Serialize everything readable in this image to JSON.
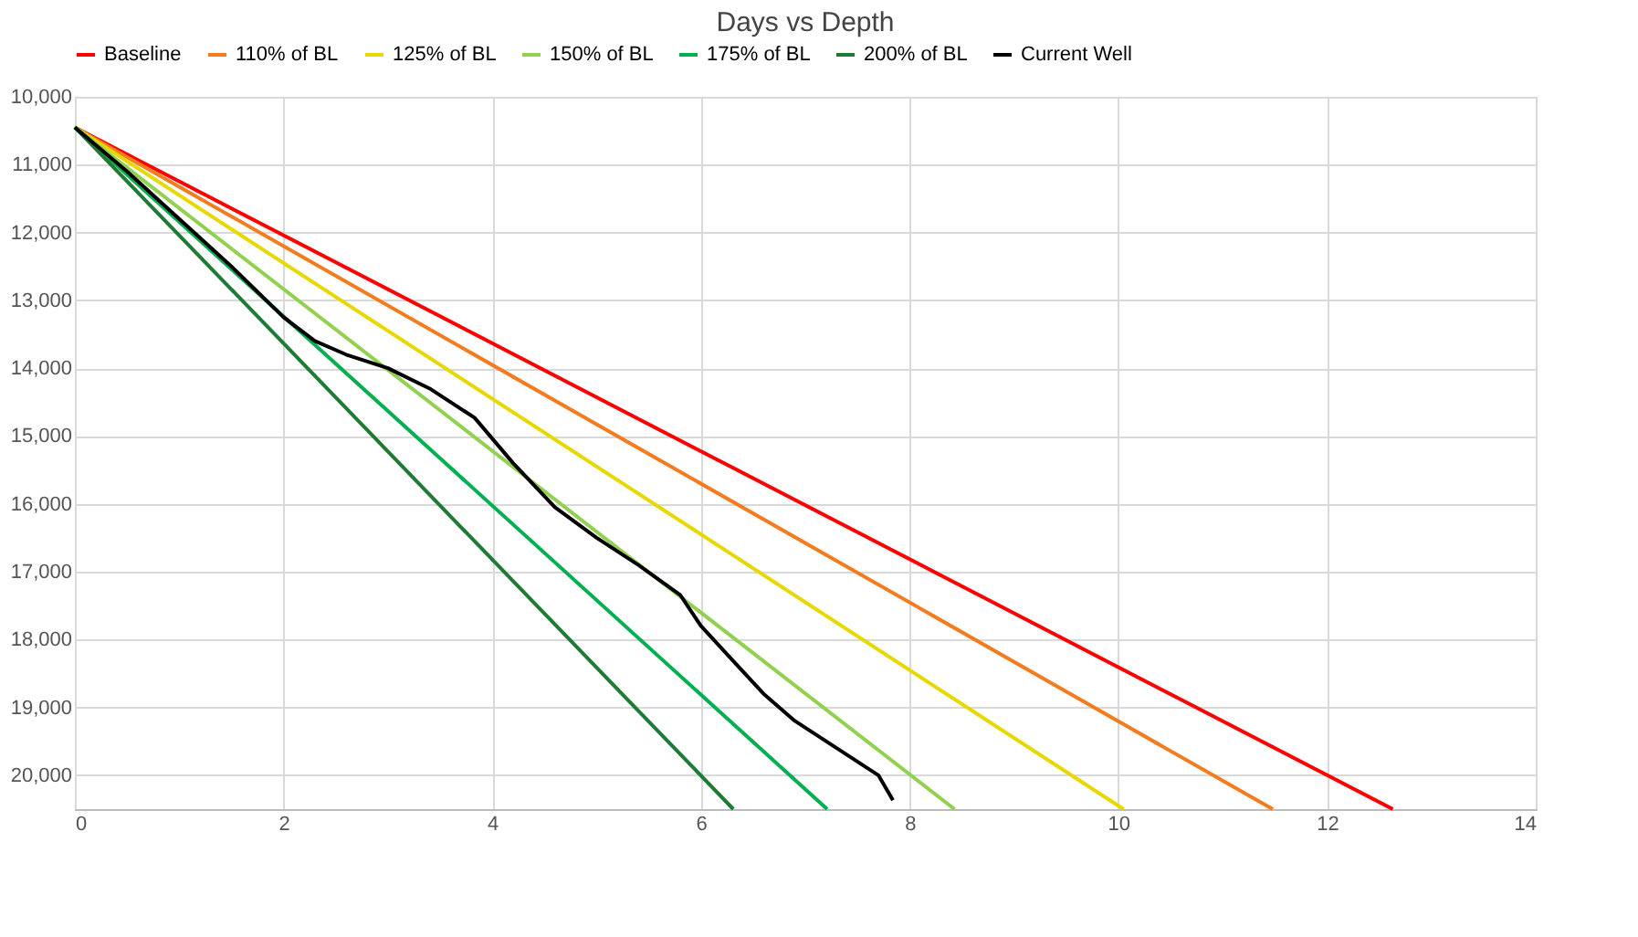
{
  "chart_data": {
    "type": "line",
    "title": "Days vs Depth",
    "xlim": [
      0,
      14
    ],
    "xticks": [
      0,
      2,
      4,
      6,
      8,
      10,
      12,
      14
    ],
    "ylim": [
      20500,
      10000
    ],
    "yticks": [
      {
        "value": 10000,
        "label": "10,000"
      },
      {
        "value": 11000,
        "label": "11,000"
      },
      {
        "value": 12000,
        "label": "12,000"
      },
      {
        "value": 13000,
        "label": "13,000"
      },
      {
        "value": 14000,
        "label": "14,000"
      },
      {
        "value": 15000,
        "label": "15,000"
      },
      {
        "value": 16000,
        "label": "16,000"
      },
      {
        "value": 17000,
        "label": "17,000"
      },
      {
        "value": 18000,
        "label": "18,000"
      },
      {
        "value": 19000,
        "label": "19,000"
      },
      {
        "value": 20000,
        "label": "20,000"
      }
    ],
    "grid": true,
    "legend": "top",
    "marker": "none",
    "line_style": "solid",
    "series": [
      {
        "name": "Baseline",
        "color": "#ff0000",
        "x": [
          0,
          12.63
        ],
        "values": [
          10450,
          20500
        ]
      },
      {
        "name": "110% of BL",
        "color": "#f47c20",
        "x": [
          0,
          11.48
        ],
        "values": [
          10450,
          20500
        ]
      },
      {
        "name": "125% of BL",
        "color": "#e6d800",
        "x": [
          0,
          10.05
        ],
        "values": [
          10450,
          20500
        ]
      },
      {
        "name": "150% of BL",
        "color": "#92d050",
        "x": [
          0,
          8.43
        ],
        "values": [
          10450,
          20500
        ]
      },
      {
        "name": "175% of BL",
        "color": "#00b050",
        "x": [
          0,
          7.21
        ],
        "values": [
          10450,
          20500
        ]
      },
      {
        "name": "200% of BL",
        "color": "#1e7b34",
        "x": [
          0,
          6.31
        ],
        "values": [
          10450,
          20500
        ]
      },
      {
        "name": "Current Well",
        "color": "#000000",
        "x": [
          0,
          0.5,
          1,
          1.5,
          2,
          2.3,
          2.6,
          3,
          3.4,
          3.83,
          4.2,
          4.6,
          5,
          5.4,
          5.8,
          6,
          6.3,
          6.6,
          6.9,
          7.3,
          7.7,
          7.84
        ],
        "values": [
          10450,
          11100,
          11800,
          12500,
          13250,
          13600,
          13800,
          14000,
          14300,
          14730,
          15400,
          16050,
          16500,
          16900,
          17340,
          17800,
          18300,
          18800,
          19200,
          19600,
          20000,
          20370
        ]
      }
    ]
  }
}
